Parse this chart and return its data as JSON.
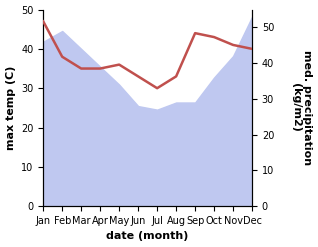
{
  "months": [
    "Jan",
    "Feb",
    "Mar",
    "Apr",
    "May",
    "Jun",
    "Jul",
    "Aug",
    "Sep",
    "Oct",
    "Nov",
    "Dec"
  ],
  "max_temp": [
    47,
    38,
    35,
    35,
    36,
    33,
    30,
    33,
    44,
    43,
    41,
    40
  ],
  "precipitation": [
    46,
    49,
    44,
    39,
    34,
    28,
    27,
    29,
    29,
    36,
    42,
    53
  ],
  "temp_color": "#c0504d",
  "precip_fill_color": "#bfc8f0",
  "ylim_left": [
    0,
    50
  ],
  "ylim_right": [
    0,
    55
  ],
  "yticks_left": [
    0,
    10,
    20,
    30,
    40,
    50
  ],
  "yticks_right": [
    0,
    10,
    20,
    30,
    40,
    50
  ],
  "xlabel": "date (month)",
  "ylabel_left": "max temp (C)",
  "ylabel_right": "med. precipitation\n(kg/m2)",
  "axis_fontsize": 8,
  "tick_fontsize": 7,
  "background_color": "#ffffff",
  "temp_linewidth": 1.8
}
